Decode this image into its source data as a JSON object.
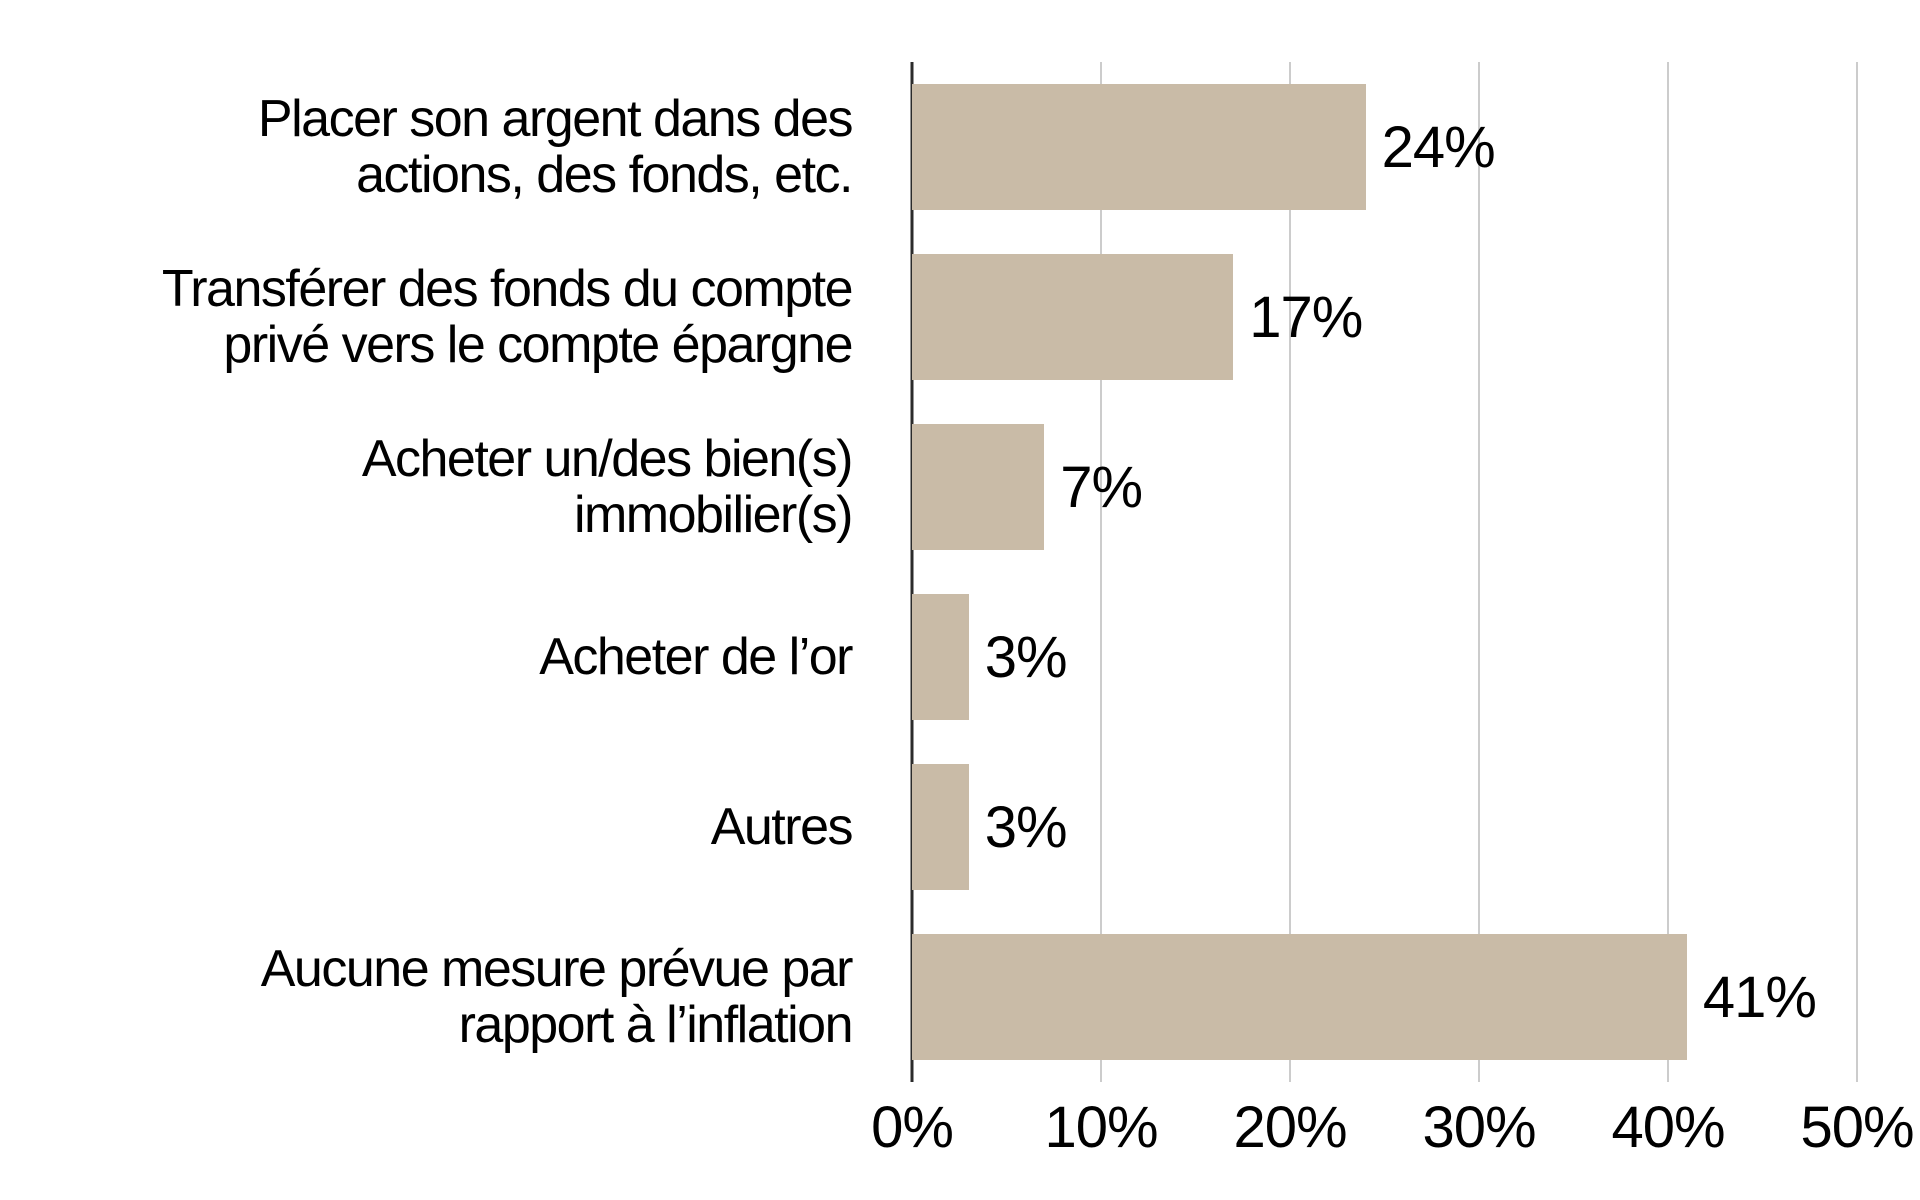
{
  "chart_data": {
    "type": "bar",
    "orientation": "horizontal",
    "title": "",
    "categories": [
      {
        "label": "Placer son argent dans des\nactions, des fonds, etc."
      },
      {
        "label": "Transférer des fonds du compte\nprivé vers le compte épargne"
      },
      {
        "label": "Acheter un/des bien(s)\nimmobilier(s)"
      },
      {
        "label": "Acheter de l’or"
      },
      {
        "label": "Autres"
      },
      {
        "label": "Aucune mesure prévue par\nrapport à l’inflation"
      }
    ],
    "values": [
      24,
      17,
      7,
      3,
      3,
      41
    ],
    "value_labels": [
      "24%",
      "17%",
      "7%",
      "3%",
      "3%",
      "41%"
    ],
    "x_ticks": [
      "0%",
      "10%",
      "20%",
      "30%",
      "40%",
      "50%"
    ],
    "xlim": [
      0,
      50
    ],
    "grid": "vertical gridlines every 10%",
    "legend": "none",
    "colors": {
      "bar": "#c9bba7",
      "gridline": "#cccccc",
      "axis": "#2b2b2b",
      "text": "#000000",
      "background": "#ffffff"
    }
  }
}
